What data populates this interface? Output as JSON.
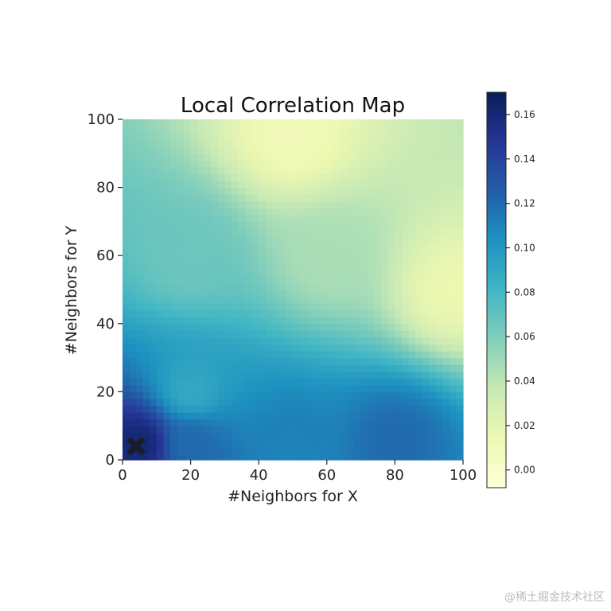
{
  "chart_data": {
    "type": "heatmap",
    "title": "Local Correlation Map",
    "xlabel": "#Neighbors for X",
    "ylabel": "#Neighbors for Y",
    "xlim": [
      0,
      100
    ],
    "ylim": [
      0,
      100
    ],
    "x_ticks": [
      "0",
      "20",
      "40",
      "60",
      "80",
      "100"
    ],
    "y_ticks": [
      "0",
      "20",
      "40",
      "60",
      "80",
      "100"
    ],
    "colormap": "YlGnBu",
    "colorbar": {
      "range": [
        -0.008,
        0.17
      ],
      "ticks": [
        "0.00",
        "0.02",
        "0.04",
        "0.06",
        "0.08",
        "0.10",
        "0.12",
        "0.14",
        "0.16"
      ]
    },
    "grid": false,
    "description_points": [
      {
        "x": 5,
        "y": 5,
        "value": 0.16
      },
      {
        "x": 20,
        "y": 5,
        "value": 0.12
      },
      {
        "x": 50,
        "y": 5,
        "value": 0.11
      },
      {
        "x": 80,
        "y": 6,
        "value": 0.12
      },
      {
        "x": 20,
        "y": 20,
        "value": 0.09
      },
      {
        "x": 20,
        "y": 60,
        "value": 0.065
      },
      {
        "x": 60,
        "y": 60,
        "value": 0.045
      },
      {
        "x": 50,
        "y": 95,
        "value": 0.01
      },
      {
        "x": 97,
        "y": 50,
        "value": 0.015
      }
    ],
    "optimal_marker": {
      "x": 4,
      "y": 4,
      "symbol": "X"
    }
  },
  "watermark": "@稀土掘金技术社区"
}
